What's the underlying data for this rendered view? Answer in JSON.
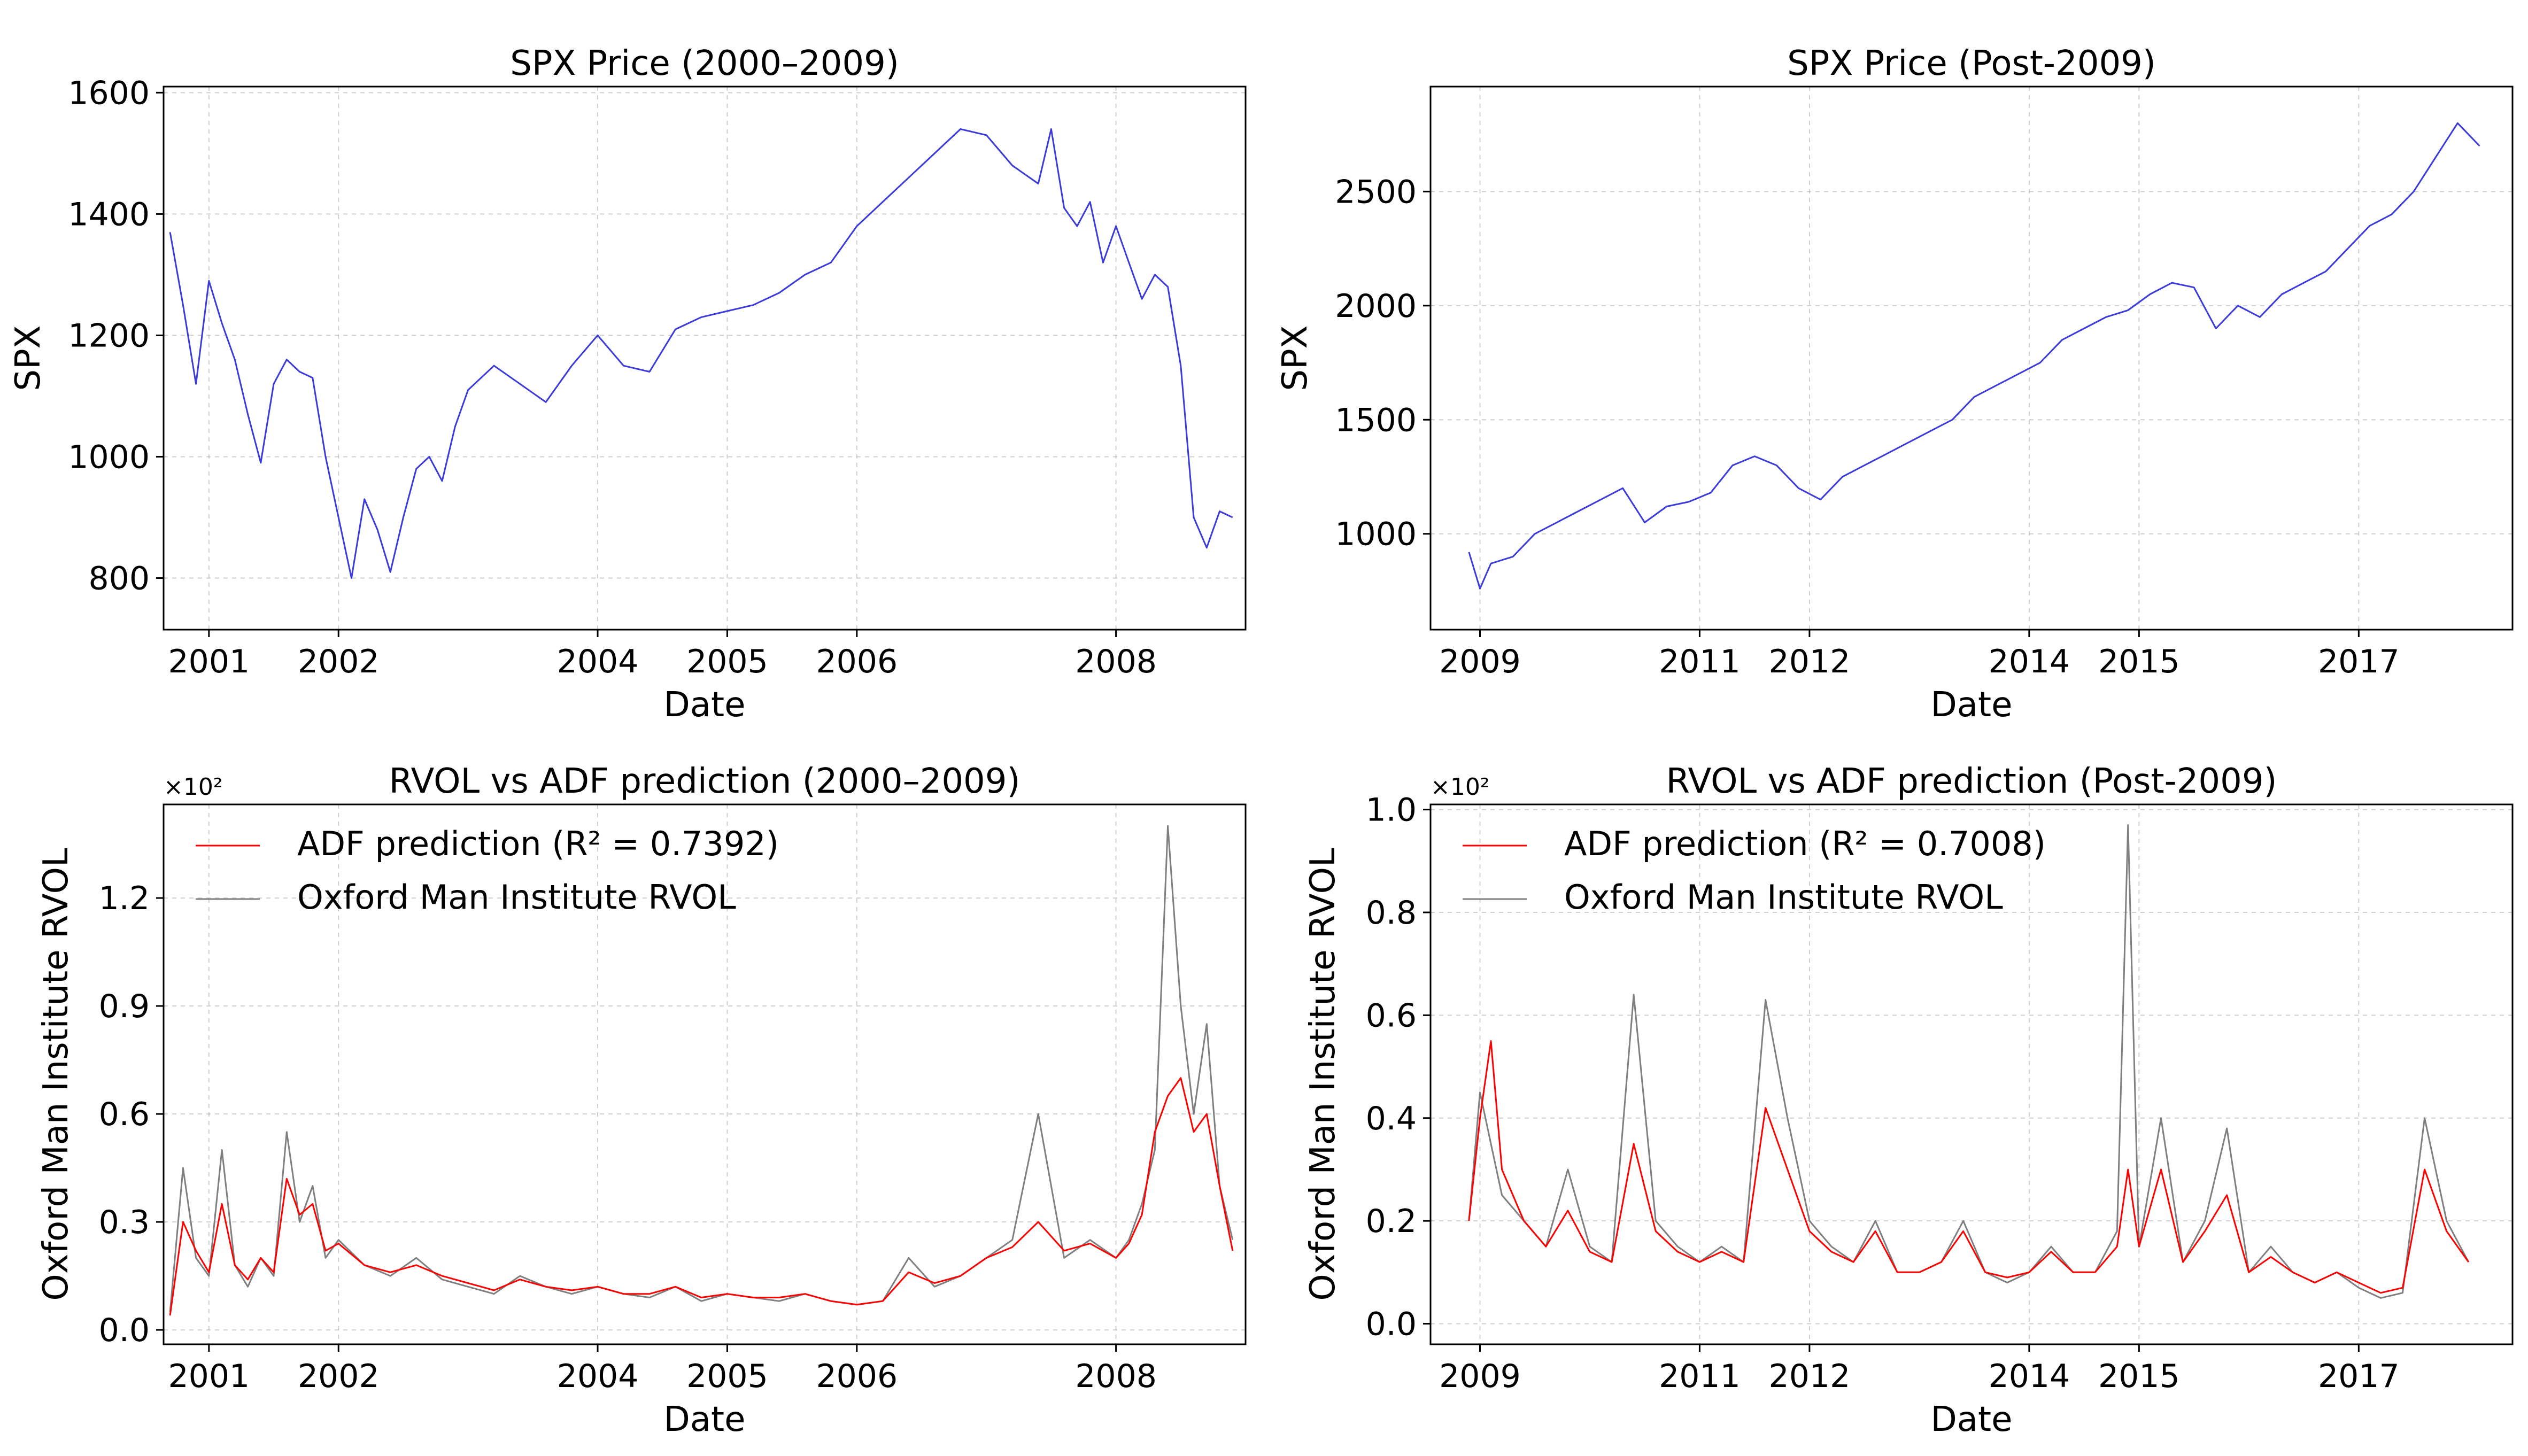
{
  "chart_data": [
    {
      "id": "spx_pre",
      "type": "line",
      "title": "SPX Price (2000–2009)",
      "xlabel": "Date",
      "ylabel": "SPX",
      "xlim": [
        2000.65,
        2009.0
      ],
      "ylim": [
        715,
        1610
      ],
      "xticks": [
        2001,
        2002,
        2004,
        2005,
        2006,
        2008
      ],
      "xtick_labels": [
        "2001",
        "2002",
        "2004",
        "2005",
        "2006",
        "2008"
      ],
      "yticks": [
        800,
        1000,
        1200,
        1400,
        1600
      ],
      "ytick_labels": [
        "800",
        "1000",
        "1200",
        "1400",
        "1600"
      ],
      "grid": true,
      "series": [
        {
          "color": "#3b3bdb",
          "x": [
            2000.7,
            2000.8,
            2000.9,
            2001.0,
            2001.1,
            2001.2,
            2001.3,
            2001.4,
            2001.5,
            2001.6,
            2001.7,
            2001.8,
            2001.9,
            2002.0,
            2002.1,
            2002.2,
            2002.3,
            2002.4,
            2002.5,
            2002.6,
            2002.7,
            2002.8,
            2002.9,
            2003.0,
            2003.2,
            2003.4,
            2003.6,
            2003.8,
            2004.0,
            2004.2,
            2004.4,
            2004.6,
            2004.8,
            2005.0,
            2005.2,
            2005.4,
            2005.6,
            2005.8,
            2006.0,
            2006.2,
            2006.4,
            2006.6,
            2006.8,
            2007.0,
            2007.2,
            2007.4,
            2007.5,
            2007.6,
            2007.7,
            2007.8,
            2007.9,
            2008.0,
            2008.1,
            2008.2,
            2008.3,
            2008.4,
            2008.5,
            2008.6,
            2008.7,
            2008.8,
            2008.9
          ],
          "y": [
            1370,
            1250,
            1120,
            1290,
            1220,
            1160,
            1070,
            990,
            1120,
            1160,
            1140,
            1130,
            1000,
            900,
            800,
            930,
            880,
            810,
            900,
            980,
            1000,
            960,
            1050,
            1110,
            1150,
            1120,
            1090,
            1150,
            1200,
            1150,
            1140,
            1210,
            1230,
            1240,
            1250,
            1270,
            1300,
            1320,
            1380,
            1420,
            1460,
            1500,
            1540,
            1530,
            1480,
            1450,
            1540,
            1410,
            1380,
            1420,
            1320,
            1380,
            1320,
            1260,
            1300,
            1280,
            1150,
            900,
            850,
            910,
            900
          ]
        }
      ]
    },
    {
      "id": "spx_post",
      "type": "line",
      "title": "SPX Price (Post-2009)",
      "xlabel": "Date",
      "ylabel": "SPX",
      "xlim": [
        2008.55,
        2018.4
      ],
      "ylim": [
        580,
        2960
      ],
      "xticks": [
        2009,
        2011,
        2012,
        2014,
        2015,
        2017
      ],
      "xtick_labels": [
        "2009",
        "2011",
        "2012",
        "2014",
        "2015",
        "2017"
      ],
      "yticks": [
        1000,
        1500,
        2000,
        2500
      ],
      "ytick_labels": [
        "1000",
        "1500",
        "2000",
        "2500"
      ],
      "grid": true,
      "series": [
        {
          "color": "#3b3bdb",
          "x": [
            2008.9,
            2009.0,
            2009.1,
            2009.3,
            2009.5,
            2009.7,
            2009.9,
            2010.1,
            2010.3,
            2010.5,
            2010.7,
            2010.9,
            2011.1,
            2011.3,
            2011.5,
            2011.7,
            2011.9,
            2012.1,
            2012.3,
            2012.5,
            2012.7,
            2012.9,
            2013.1,
            2013.3,
            2013.5,
            2013.7,
            2013.9,
            2014.1,
            2014.3,
            2014.5,
            2014.7,
            2014.9,
            2015.1,
            2015.3,
            2015.5,
            2015.7,
            2015.9,
            2016.1,
            2016.3,
            2016.5,
            2016.7,
            2016.9,
            2017.1,
            2017.3,
            2017.5,
            2017.7,
            2017.9,
            2018.1
          ],
          "y": [
            920,
            760,
            870,
            900,
            1000,
            1050,
            1100,
            1150,
            1200,
            1050,
            1120,
            1140,
            1180,
            1300,
            1340,
            1300,
            1200,
            1150,
            1250,
            1300,
            1350,
            1400,
            1450,
            1500,
            1600,
            1650,
            1700,
            1750,
            1850,
            1900,
            1950,
            1980,
            2050,
            2100,
            2080,
            1900,
            2000,
            1950,
            2050,
            2100,
            2150,
            2250,
            2350,
            2400,
            2500,
            2650,
            2800,
            2700
          ]
        }
      ]
    },
    {
      "id": "rvol_pre",
      "type": "line",
      "title": "RVOL vs ADF prediction (2000–2009)",
      "xlabel": "Date",
      "ylabel": "Oxford Man Institute RVOL",
      "offset_text": "×10²",
      "xlim": [
        2000.65,
        2009.0
      ],
      "ylim": [
        -0.04,
        1.46
      ],
      "xticks": [
        2001,
        2002,
        2004,
        2005,
        2006,
        2008
      ],
      "xtick_labels": [
        "2001",
        "2002",
        "2004",
        "2005",
        "2006",
        "2008"
      ],
      "yticks": [
        0.0,
        0.3,
        0.6,
        0.9,
        1.2
      ],
      "ytick_labels": [
        "0.0",
        "0.3",
        "0.6",
        "0.9",
        "1.2"
      ],
      "grid": true,
      "legend": "upper-left",
      "series": [
        {
          "name": "Oxford Man Institute RVOL",
          "color": "#7f7f7f",
          "x": [
            2000.7,
            2000.8,
            2000.9,
            2001.0,
            2001.1,
            2001.2,
            2001.3,
            2001.4,
            2001.5,
            2001.6,
            2001.7,
            2001.8,
            2001.9,
            2002.0,
            2002.2,
            2002.4,
            2002.6,
            2002.8,
            2003.0,
            2003.2,
            2003.4,
            2003.6,
            2003.8,
            2004.0,
            2004.2,
            2004.4,
            2004.6,
            2004.8,
            2005.0,
            2005.2,
            2005.4,
            2005.6,
            2005.8,
            2006.0,
            2006.2,
            2006.4,
            2006.6,
            2006.8,
            2007.0,
            2007.2,
            2007.4,
            2007.6,
            2007.8,
            2008.0,
            2008.1,
            2008.2,
            2008.3,
            2008.4,
            2008.5,
            2008.6,
            2008.7,
            2008.8,
            2008.9
          ],
          "y": [
            0.05,
            0.45,
            0.2,
            0.15,
            0.5,
            0.18,
            0.12,
            0.2,
            0.15,
            0.55,
            0.3,
            0.4,
            0.2,
            0.25,
            0.18,
            0.15,
            0.2,
            0.14,
            0.12,
            0.1,
            0.15,
            0.12,
            0.1,
            0.12,
            0.1,
            0.09,
            0.12,
            0.08,
            0.1,
            0.09,
            0.08,
            0.1,
            0.08,
            0.07,
            0.08,
            0.2,
            0.12,
            0.15,
            0.2,
            0.25,
            0.6,
            0.2,
            0.25,
            0.2,
            0.25,
            0.35,
            0.5,
            1.4,
            0.9,
            0.6,
            0.85,
            0.4,
            0.25
          ]
        },
        {
          "name": "ADF prediction (R² = 0.7392)",
          "color": "#ff0000",
          "x": [
            2000.7,
            2000.8,
            2000.9,
            2001.0,
            2001.1,
            2001.2,
            2001.3,
            2001.4,
            2001.5,
            2001.6,
            2001.7,
            2001.8,
            2001.9,
            2002.0,
            2002.2,
            2002.4,
            2002.6,
            2002.8,
            2003.0,
            2003.2,
            2003.4,
            2003.6,
            2003.8,
            2004.0,
            2004.2,
            2004.4,
            2004.6,
            2004.8,
            2005.0,
            2005.2,
            2005.4,
            2005.6,
            2005.8,
            2006.0,
            2006.2,
            2006.4,
            2006.6,
            2006.8,
            2007.0,
            2007.2,
            2007.4,
            2007.6,
            2007.8,
            2008.0,
            2008.1,
            2008.2,
            2008.3,
            2008.4,
            2008.5,
            2008.6,
            2008.7,
            2008.8,
            2008.9
          ],
          "y": [
            0.04,
            0.3,
            0.22,
            0.16,
            0.35,
            0.18,
            0.14,
            0.2,
            0.16,
            0.42,
            0.32,
            0.35,
            0.22,
            0.24,
            0.18,
            0.16,
            0.18,
            0.15,
            0.13,
            0.11,
            0.14,
            0.12,
            0.11,
            0.12,
            0.1,
            0.1,
            0.12,
            0.09,
            0.1,
            0.09,
            0.09,
            0.1,
            0.08,
            0.07,
            0.08,
            0.16,
            0.13,
            0.15,
            0.2,
            0.23,
            0.3,
            0.22,
            0.24,
            0.2,
            0.24,
            0.32,
            0.55,
            0.65,
            0.7,
            0.55,
            0.6,
            0.4,
            0.22
          ]
        }
      ]
    },
    {
      "id": "rvol_post",
      "type": "line",
      "title": "RVOL vs ADF prediction (Post-2009)",
      "xlabel": "Date",
      "ylabel": "Oxford Man Institute RVOL",
      "offset_text": "×10²",
      "xlim": [
        2008.55,
        2018.4
      ],
      "ylim": [
        -0.04,
        1.01
      ],
      "xticks": [
        2009,
        2011,
        2012,
        2014,
        2015,
        2017
      ],
      "xtick_labels": [
        "2009",
        "2011",
        "2012",
        "2014",
        "2015",
        "2017"
      ],
      "yticks": [
        0.0,
        0.2,
        0.4,
        0.6,
        0.8,
        1.0
      ],
      "ytick_labels": [
        "0.0",
        "0.2",
        "0.4",
        "0.6",
        "0.8",
        "1.0"
      ],
      "grid": true,
      "legend": "upper-left",
      "series": [
        {
          "name": "Oxford Man Institute RVOL",
          "color": "#7f7f7f",
          "x": [
            2008.9,
            2009.0,
            2009.1,
            2009.2,
            2009.4,
            2009.6,
            2009.8,
            2010.0,
            2010.2,
            2010.4,
            2010.6,
            2010.8,
            2011.0,
            2011.2,
            2011.4,
            2011.6,
            2011.8,
            2012.0,
            2012.2,
            2012.4,
            2012.6,
            2012.8,
            2013.0,
            2013.2,
            2013.4,
            2013.6,
            2013.8,
            2014.0,
            2014.2,
            2014.4,
            2014.6,
            2014.8,
            2014.9,
            2015.0,
            2015.2,
            2015.4,
            2015.6,
            2015.8,
            2016.0,
            2016.2,
            2016.4,
            2016.6,
            2016.8,
            2017.0,
            2017.2,
            2017.4,
            2017.6,
            2017.8,
            2018.0
          ],
          "y": [
            0.2,
            0.45,
            0.35,
            0.25,
            0.2,
            0.15,
            0.3,
            0.15,
            0.12,
            0.64,
            0.2,
            0.15,
            0.12,
            0.15,
            0.12,
            0.63,
            0.4,
            0.2,
            0.15,
            0.12,
            0.2,
            0.1,
            0.1,
            0.12,
            0.2,
            0.1,
            0.08,
            0.1,
            0.15,
            0.1,
            0.1,
            0.18,
            0.97,
            0.15,
            0.4,
            0.12,
            0.2,
            0.38,
            0.1,
            0.15,
            0.1,
            0.08,
            0.1,
            0.07,
            0.05,
            0.06,
            0.4,
            0.2,
            0.12
          ]
        },
        {
          "name": "ADF prediction (R² = 0.7008)",
          "color": "#ff0000",
          "x": [
            2008.9,
            2009.0,
            2009.1,
            2009.2,
            2009.4,
            2009.6,
            2009.8,
            2010.0,
            2010.2,
            2010.4,
            2010.6,
            2010.8,
            2011.0,
            2011.2,
            2011.4,
            2011.6,
            2011.8,
            2012.0,
            2012.2,
            2012.4,
            2012.6,
            2012.8,
            2013.0,
            2013.2,
            2013.4,
            2013.6,
            2013.8,
            2014.0,
            2014.2,
            2014.4,
            2014.6,
            2014.8,
            2014.9,
            2015.0,
            2015.2,
            2015.4,
            2015.6,
            2015.8,
            2016.0,
            2016.2,
            2016.4,
            2016.6,
            2016.8,
            2017.0,
            2017.2,
            2017.4,
            2017.6,
            2017.8,
            2018.0
          ],
          "y": [
            0.2,
            0.4,
            0.55,
            0.3,
            0.2,
            0.15,
            0.22,
            0.14,
            0.12,
            0.35,
            0.18,
            0.14,
            0.12,
            0.14,
            0.12,
            0.42,
            0.3,
            0.18,
            0.14,
            0.12,
            0.18,
            0.1,
            0.1,
            0.12,
            0.18,
            0.1,
            0.09,
            0.1,
            0.14,
            0.1,
            0.1,
            0.15,
            0.3,
            0.15,
            0.3,
            0.12,
            0.18,
            0.25,
            0.1,
            0.13,
            0.1,
            0.08,
            0.1,
            0.08,
            0.06,
            0.07,
            0.3,
            0.18,
            0.12
          ]
        }
      ]
    }
  ]
}
